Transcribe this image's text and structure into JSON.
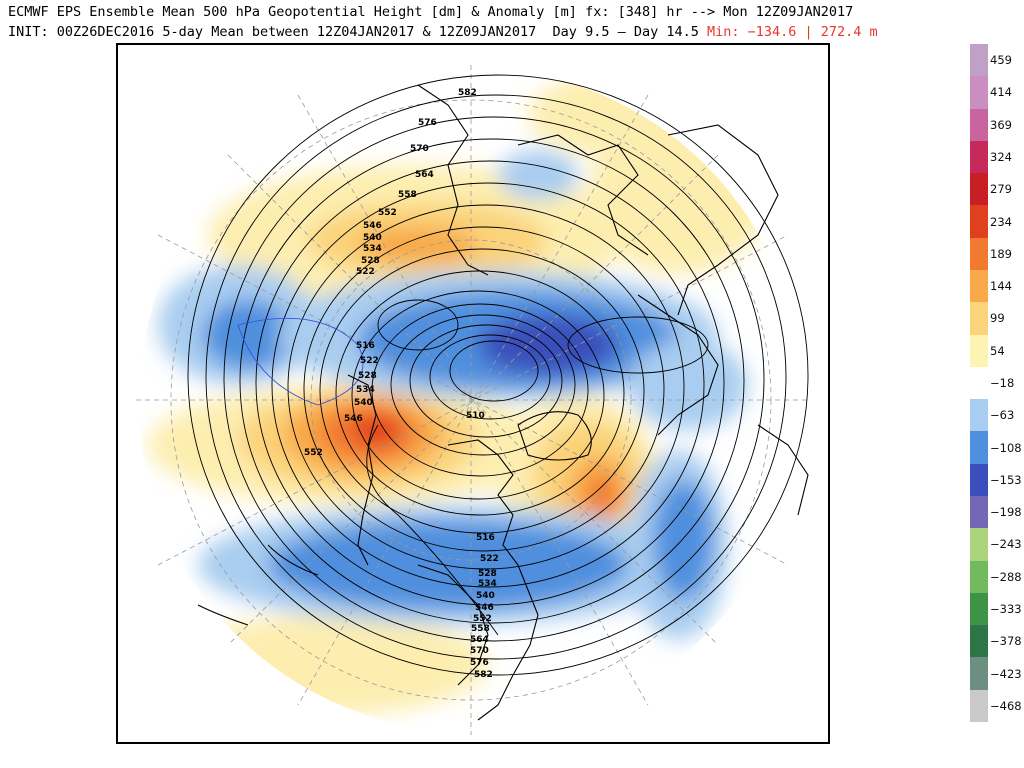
{
  "header": {
    "line1": "ECMWF EPS Ensemble Mean 500 hPa Geopotential Height [dm] & Anomaly [m] fx: [348] hr --> Mon 12Z09JAN2017",
    "line2_black": "INIT: 00Z26DEC2016 5-day Mean between 12Z04JAN2017 & 12Z09JAN2017  Day 9.5 — Day 14.5",
    "line2_red": "Min: −134.6 | 272.4 m"
  },
  "map": {
    "projection": "north-polar-stereographic",
    "background": "#ffffff",
    "contour_labels": [
      {
        "id": "c1",
        "text": "582"
      },
      {
        "id": "c2",
        "text": "576"
      },
      {
        "id": "c3",
        "text": "570"
      },
      {
        "id": "c4",
        "text": "564"
      },
      {
        "id": "c5",
        "text": "558"
      },
      {
        "id": "c6",
        "text": "552"
      },
      {
        "id": "c7",
        "text": "546"
      },
      {
        "id": "c8",
        "text": "540"
      },
      {
        "id": "c9",
        "text": "534"
      },
      {
        "id": "c10",
        "text": "528"
      },
      {
        "id": "c11",
        "text": "522"
      },
      {
        "id": "c12",
        "text": "516"
      },
      {
        "id": "c13",
        "text": "522"
      },
      {
        "id": "c14",
        "text": "528"
      },
      {
        "id": "c15",
        "text": "534"
      },
      {
        "id": "c16",
        "text": "540"
      },
      {
        "id": "c17",
        "text": "546"
      },
      {
        "id": "c18",
        "text": "552"
      },
      {
        "id": "c19",
        "text": "510"
      },
      {
        "id": "c20",
        "text": "516"
      },
      {
        "id": "c21",
        "text": "522"
      },
      {
        "id": "c22",
        "text": "528"
      },
      {
        "id": "c23",
        "text": "534"
      },
      {
        "id": "c24",
        "text": "540"
      },
      {
        "id": "c25",
        "text": "546"
      },
      {
        "id": "c26",
        "text": "552"
      },
      {
        "id": "c27",
        "text": "558"
      },
      {
        "id": "c28",
        "text": "564"
      },
      {
        "id": "c29",
        "text": "570"
      },
      {
        "id": "c30",
        "text": "576"
      },
      {
        "id": "c31",
        "text": "582"
      }
    ]
  },
  "colorbar": {
    "units": "m",
    "stops": [
      {
        "label": "459",
        "color": "#bfa0c6"
      },
      {
        "label": "414",
        "color": "#c98fc0"
      },
      {
        "label": "369",
        "color": "#c9649f"
      },
      {
        "label": "324",
        "color": "#c52a5a"
      },
      {
        "label": "279",
        "color": "#c81e26"
      },
      {
        "label": "234",
        "color": "#e1401e"
      },
      {
        "label": "189",
        "color": "#f27a30"
      },
      {
        "label": "144",
        "color": "#f8a94a"
      },
      {
        "label": "99",
        "color": "#fbd37a"
      },
      {
        "label": "54",
        "color": "#fdf3b2"
      },
      {
        "label": "−18",
        "color": "#ffffff"
      },
      {
        "label": "−63",
        "color": "#a9cdf0"
      },
      {
        "label": "−108",
        "color": "#4f8fde"
      },
      {
        "label": "−153",
        "color": "#3a4fbb"
      },
      {
        "label": "−198",
        "color": "#7268b4"
      },
      {
        "label": "−243",
        "color": "#a9d47d"
      },
      {
        "label": "−288",
        "color": "#73b95e"
      },
      {
        "label": "−333",
        "color": "#3e9347"
      },
      {
        "label": "−378",
        "color": "#2d7447"
      },
      {
        "label": "−423",
        "color": "#6d8f82"
      },
      {
        "label": "−468",
        "color": "#c9c9c9"
      }
    ]
  }
}
